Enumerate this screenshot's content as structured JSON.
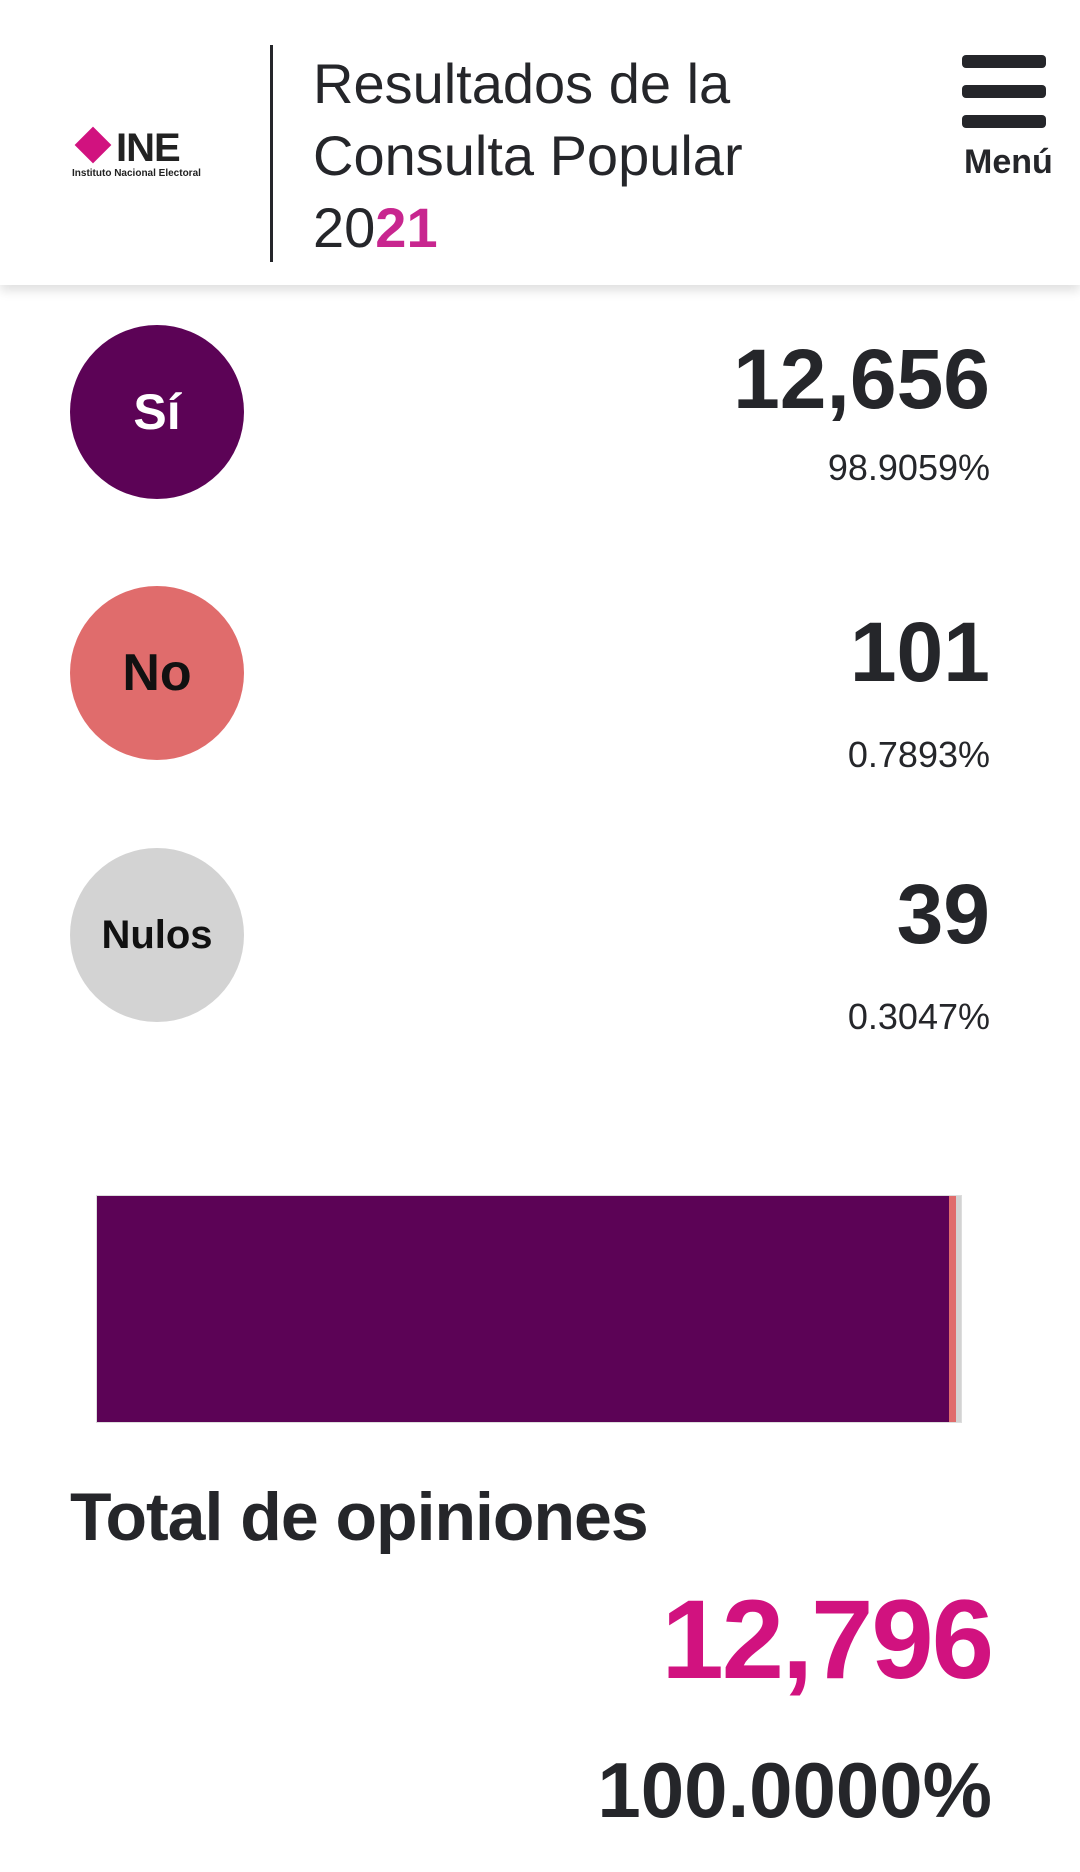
{
  "header": {
    "logo_text": "INE",
    "logo_subtitle": "Instituto Nacional Electoral",
    "title_line1": "Resultados de la",
    "title_line2": "Consulta Popular",
    "title_year_prefix": "20",
    "title_year_highlight": "21",
    "menu_label": "Menú",
    "menu_icon": "hamburger-icon"
  },
  "results": [
    {
      "label": "Sí",
      "count": "12,656",
      "percent": "98.9059%",
      "color": "#5c0356",
      "text_color": "#ffffff",
      "share": 98.9059
    },
    {
      "label": "No",
      "count": "101",
      "percent": "0.7893%",
      "color": "#e06c6c",
      "text_color": "#111111",
      "share": 0.7893
    },
    {
      "label": "Nulos",
      "count": "39",
      "percent": "0.3047%",
      "color": "#d3d3d3",
      "text_color": "#111111",
      "share": 0.3047
    }
  ],
  "total": {
    "label": "Total de opiniones",
    "count": "12,796",
    "percent": "100.0000%",
    "color": "#d1127f"
  }
}
